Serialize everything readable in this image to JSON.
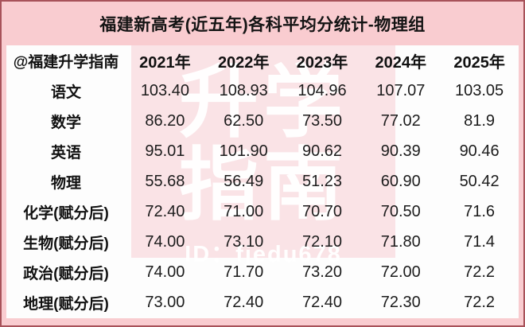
{
  "title": "福建新高考(近五年)各科平均分统计-物理组",
  "watermark": {
    "big_text_line1": "升学",
    "big_text_line2": "指南",
    "id_text": "ID：fjedu678"
  },
  "chart_data": {
    "type": "table",
    "title": "福建新高考(近五年)各科平均分统计-物理组",
    "corner_label": "@福建升学指南",
    "columns": [
      "2021年",
      "2022年",
      "2023年",
      "2024年",
      "2025年"
    ],
    "rows": [
      {
        "label": "语文",
        "values": [
          "103.40",
          "108.93",
          "104.96",
          "107.07",
          "103.05"
        ]
      },
      {
        "label": "数学",
        "values": [
          "86.20",
          "62.50",
          "73.50",
          "77.02",
          "81.9"
        ]
      },
      {
        "label": "英语",
        "values": [
          "95.01",
          "101.90",
          "90.62",
          "90.39",
          "90.46"
        ]
      },
      {
        "label": "物理",
        "values": [
          "55.68",
          "56.49",
          "51.23",
          "60.90",
          "50.42"
        ]
      },
      {
        "label": "化学(赋分后)",
        "values": [
          "72.40",
          "71.00",
          "70.70",
          "70.50",
          "71.6"
        ]
      },
      {
        "label": "生物(赋分后)",
        "values": [
          "74.00",
          "73.10",
          "72.10",
          "71.80",
          "71.4"
        ]
      },
      {
        "label": "政治(赋分后)",
        "values": [
          "74.00",
          "71.70",
          "73.20",
          "72.00",
          "72.2"
        ]
      },
      {
        "label": "地理(赋分后)",
        "values": [
          "73.00",
          "72.40",
          "72.40",
          "72.30",
          "72.2"
        ]
      }
    ]
  },
  "colors": {
    "frame_background": "#f9ccd0",
    "frame_border": "#a8525a",
    "card_background": "#fdfdfd",
    "watermark_block": "#fae3e6",
    "watermark_text": "#ffffff",
    "text": "#141414"
  }
}
